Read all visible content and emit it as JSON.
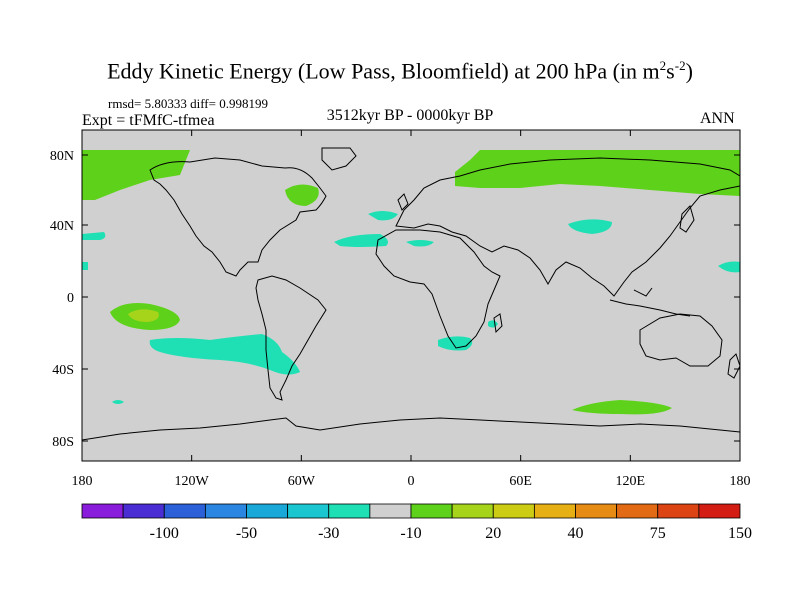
{
  "figure": {
    "title_main": "Eddy Kinetic Energy (Low Pass, Bloomfield) at 200 hPa (in m",
    "title_sup1": "2",
    "title_mid": "s",
    "title_sup2": "-2",
    "title_end": ")",
    "stats": "rmsd= 5.80333 diff= 0.998199",
    "experiment": "Expt = tFMfC-tfmea",
    "period": "3512kyr BP - 0000kyr BP",
    "season": "ANN"
  },
  "map": {
    "lat_labels": [
      "80N",
      "40N",
      "0",
      "40S",
      "80S"
    ],
    "lon_labels": [
      "180",
      "120W",
      "60W",
      "0",
      "60E",
      "120E",
      "180"
    ],
    "background_color": "#d0d0d0"
  },
  "colorbar": {
    "colors": [
      "#8a1cdc",
      "#4a2ed4",
      "#2c60d8",
      "#2a86e0",
      "#1aa8d8",
      "#1ac6d0",
      "#1ee0b4",
      "#d0d0d0",
      "#5ed21a",
      "#a6d41a",
      "#cccc14",
      "#e6b014",
      "#e68c14",
      "#e26a14",
      "#dc4414",
      "#d21c14"
    ],
    "labels": [
      "-100",
      "-50",
      "-30",
      "-10",
      "20",
      "40",
      "75",
      "150"
    ]
  }
}
